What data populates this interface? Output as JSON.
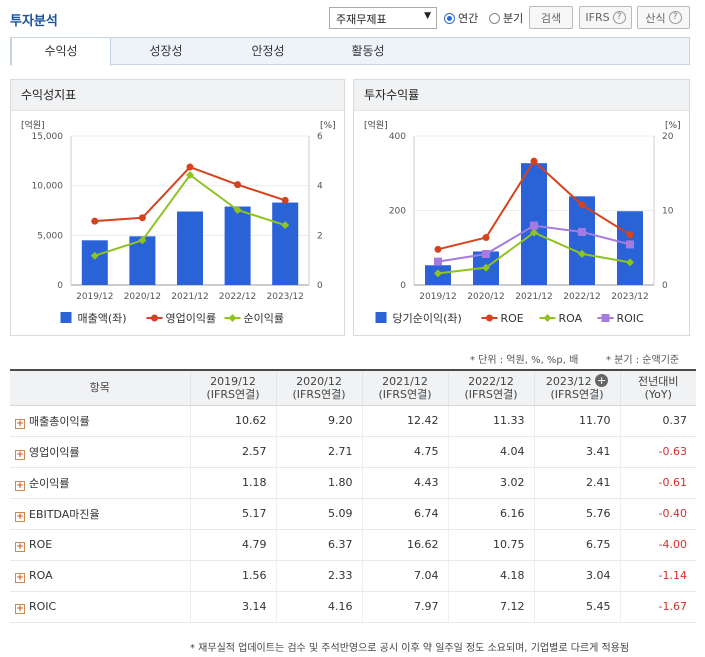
{
  "header": {
    "title": "투자분석",
    "select_value": "주재무제표",
    "radio_annual": "연간",
    "radio_quarter": "분기",
    "search_label": "검색",
    "ifrs_label": "IFRS",
    "formula_label": "산식"
  },
  "tabs": [
    "수익성",
    "성장성",
    "안정성",
    "활동성"
  ],
  "chart1": {
    "heading": "수익성지표",
    "left_unit": "[억원]",
    "right_unit": "[%]",
    "legend": [
      "매출액(좌)",
      "영업이익률",
      "순이익률"
    ]
  },
  "chart2": {
    "heading": "투자수익률",
    "left_unit": "[억원]",
    "right_unit": "[%]",
    "legend": [
      "당기순이익(좌)",
      "ROE",
      "ROA",
      "ROIC"
    ]
  },
  "colors": {
    "bar": "#2a62d8",
    "red": "#d6421e",
    "green": "#8fc320",
    "purple": "#a67be0"
  },
  "chart_data": [
    {
      "type": "bar",
      "categories": [
        "2019/12",
        "2020/12",
        "2021/12",
        "2022/12",
        "2023/12"
      ],
      "ylim_left": [
        0,
        15000
      ],
      "ylim_right": [
        0,
        6
      ],
      "left_ticks": [
        "0",
        "5,000",
        "10,000",
        "15,000"
      ],
      "right_ticks": [
        "0",
        "2",
        "4",
        "6"
      ],
      "series": [
        {
          "name": "매출액(좌)",
          "kind": "bar",
          "axis": "left",
          "values": [
            4500,
            4900,
            7400,
            7900,
            8300
          ]
        },
        {
          "name": "영업이익률",
          "kind": "line",
          "axis": "right",
          "values": [
            2.57,
            2.71,
            4.75,
            4.04,
            3.41
          ]
        },
        {
          "name": "순이익률",
          "kind": "line",
          "axis": "right",
          "values": [
            1.18,
            1.8,
            4.43,
            3.02,
            2.41
          ]
        }
      ]
    },
    {
      "type": "bar",
      "categories": [
        "2019/12",
        "2020/12",
        "2021/12",
        "2022/12",
        "2023/12"
      ],
      "ylim_left": [
        0,
        400
      ],
      "ylim_right": [
        0,
        20
      ],
      "left_ticks": [
        "0",
        "200",
        "400"
      ],
      "right_ticks": [
        "0",
        "10",
        "20"
      ],
      "series": [
        {
          "name": "당기순이익(좌)",
          "kind": "bar",
          "axis": "left",
          "values": [
            53,
            90,
            327,
            238,
            198
          ]
        },
        {
          "name": "ROE",
          "kind": "line",
          "axis": "right",
          "values": [
            4.79,
            6.37,
            16.62,
            10.75,
            6.75
          ]
        },
        {
          "name": "ROA",
          "kind": "line",
          "axis": "right",
          "values": [
            1.56,
            2.33,
            7.04,
            4.18,
            3.04
          ]
        },
        {
          "name": "ROIC",
          "kind": "line",
          "axis": "right",
          "values": [
            3.14,
            4.16,
            7.97,
            7.12,
            5.45
          ]
        }
      ]
    }
  ],
  "notes": {
    "unit": "* 단위 : 억원, %, %p, 배",
    "quarter": "* 분기 : 순액기준"
  },
  "table": {
    "item_header": "항목",
    "year_headers": [
      {
        "year": "2019/12",
        "basis": "(IFRS연결)"
      },
      {
        "year": "2020/12",
        "basis": "(IFRS연결)"
      },
      {
        "year": "2021/12",
        "basis": "(IFRS연결)"
      },
      {
        "year": "2022/12",
        "basis": "(IFRS연결)"
      },
      {
        "year": "2023/12",
        "basis": "(IFRS연결)"
      }
    ],
    "yoy_header": "전년대비",
    "yoy_sub": "(YoY)",
    "expand_symbol": "+",
    "rows": [
      {
        "label": "매출총이익률",
        "values": [
          "10.62",
          "9.20",
          "12.42",
          "11.33",
          "11.70"
        ],
        "yoy": "0.37"
      },
      {
        "label": "영업이익률",
        "values": [
          "2.57",
          "2.71",
          "4.75",
          "4.04",
          "3.41"
        ],
        "yoy": "-0.63"
      },
      {
        "label": "순이익률",
        "values": [
          "1.18",
          "1.80",
          "4.43",
          "3.02",
          "2.41"
        ],
        "yoy": "-0.61"
      },
      {
        "label": "EBITDA마진율",
        "values": [
          "5.17",
          "5.09",
          "6.74",
          "6.16",
          "5.76"
        ],
        "yoy": "-0.40"
      },
      {
        "label": "ROE",
        "values": [
          "4.79",
          "6.37",
          "16.62",
          "10.75",
          "6.75"
        ],
        "yoy": "-4.00"
      },
      {
        "label": "ROA",
        "values": [
          "1.56",
          "2.33",
          "7.04",
          "4.18",
          "3.04"
        ],
        "yoy": "-1.14"
      },
      {
        "label": "ROIC",
        "values": [
          "3.14",
          "4.16",
          "7.97",
          "7.12",
          "5.45"
        ],
        "yoy": "-1.67"
      }
    ]
  },
  "footnote": "* 재무실적 업데이트는 검수 및 주석반영으로 공시 이후 약 일주일 정도 소요되며, 기업별로 다르게 적용됨"
}
